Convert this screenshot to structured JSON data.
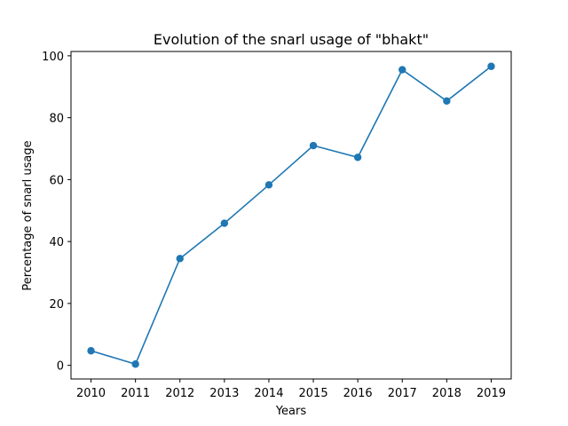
{
  "chart_data": {
    "type": "line",
    "title": "Evolution of the snarl usage of \"bhakt\"",
    "xlabel": "Years",
    "ylabel": "Percentage of snarl usage",
    "x": [
      2010,
      2011,
      2012,
      2013,
      2014,
      2015,
      2016,
      2017,
      2018,
      2019
    ],
    "series": [
      {
        "values": [
          4.7,
          0.4,
          34.5,
          45.9,
          58.3,
          71.0,
          67.2,
          95.5,
          85.4,
          96.6
        ]
      }
    ],
    "yticks": [
      0,
      20,
      40,
      60,
      80,
      100
    ],
    "ylim": [
      -4.4,
      101.4
    ],
    "grid": false,
    "legend": "none",
    "color": "#1f77b4"
  }
}
